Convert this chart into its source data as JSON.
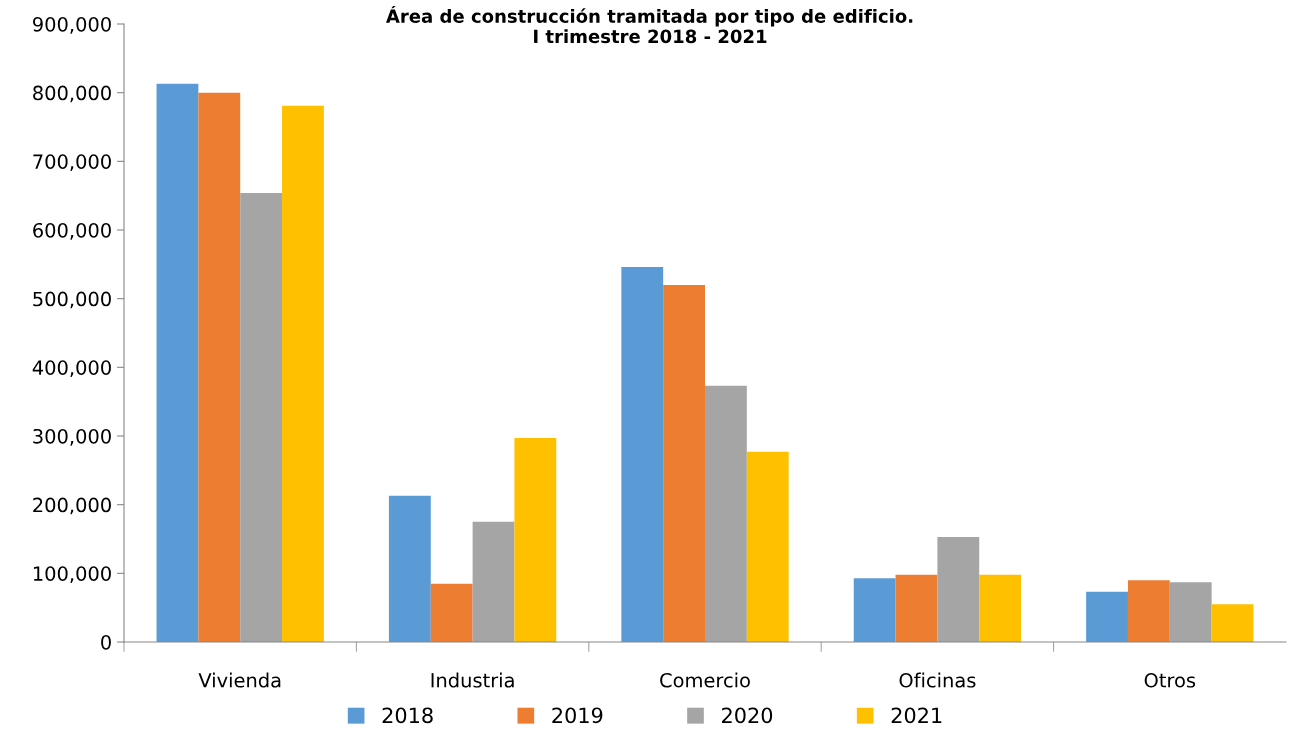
{
  "chart_data": {
    "type": "bar",
    "title": "Área de construcción tramitada por tipo de edificio.\nI trimestre 2018 - 2021",
    "categories": [
      "Vivienda",
      "Industria",
      "Comercio",
      "Oficinas",
      "Otros"
    ],
    "series": [
      {
        "name": "2018",
        "color": "#5b9bd5",
        "values": [
          813000,
          213000,
          546000,
          93000,
          73000
        ]
      },
      {
        "name": "2019",
        "color": "#ed7d31",
        "values": [
          800000,
          85000,
          520000,
          98000,
          90000
        ]
      },
      {
        "name": "2020",
        "color": "#a5a5a5",
        "values": [
          654000,
          175000,
          373000,
          153000,
          87000
        ]
      },
      {
        "name": "2021",
        "color": "#ffc000",
        "values": [
          781000,
          297000,
          277000,
          98000,
          55000
        ]
      }
    ],
    "ylim": [
      0,
      900000
    ],
    "yticks": [
      {
        "value": 0,
        "label": "0"
      },
      {
        "value": 100000,
        "label": "100,000"
      },
      {
        "value": 200000,
        "label": "200,000"
      },
      {
        "value": 300000,
        "label": "300,000"
      },
      {
        "value": 400000,
        "label": "400,000"
      },
      {
        "value": 500000,
        "label": "500,000"
      },
      {
        "value": 600000,
        "label": "600,000"
      },
      {
        "value": 700000,
        "label": "700,000"
      },
      {
        "value": 800000,
        "label": "800,000"
      },
      {
        "value": 900000,
        "label": "900,000"
      }
    ],
    "grid": false,
    "legend": "bottom"
  }
}
